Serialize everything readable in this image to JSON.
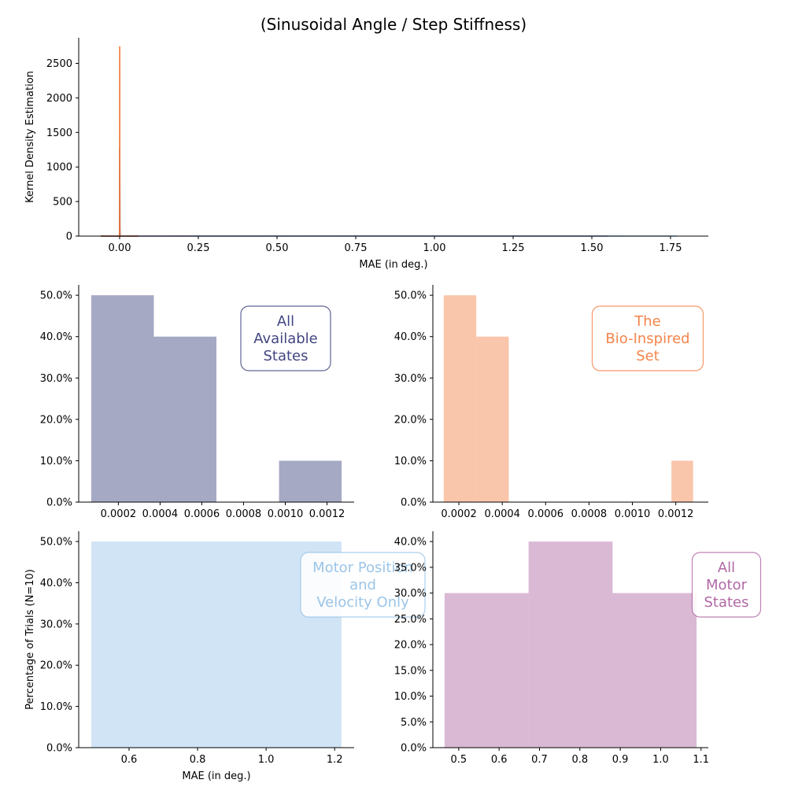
{
  "figure": {
    "title": "(Sinusoidal Angle / Step Stiffness)"
  },
  "colors": {
    "all_available": "#2c3172",
    "bio_inspired": "#f37736",
    "motor_pos_vel": "#90bfe6",
    "all_motor": "#a8589c"
  },
  "chart_data": [
    {
      "type": "line",
      "ylabel": "Kernel Density Estimation",
      "xlabel": "MAE (in deg.)",
      "xlim": [
        -0.13,
        1.87
      ],
      "ylim": [
        0,
        2870
      ],
      "xticks": [
        0.0,
        0.25,
        0.5,
        0.75,
        1.0,
        1.25,
        1.5,
        1.75
      ],
      "xtick_labels": [
        "0.00",
        "0.25",
        "0.50",
        "0.75",
        "1.00",
        "1.25",
        "1.50",
        "1.75"
      ],
      "yticks": [
        0,
        500,
        1000,
        1500,
        2000,
        2500
      ],
      "ytick_labels": [
        "0",
        "500",
        "1000",
        "1500",
        "2000",
        "2500"
      ],
      "grid": false,
      "series": [
        {
          "color": "#2c3172",
          "x": [
            -0.06,
            -0.0005,
            -0.0002,
            0.0001,
            0.0004,
            0.0007,
            0.001,
            0.0013,
            0.0016,
            0.06
          ],
          "y": [
            0,
            0,
            40,
            500,
            1280,
            700,
            120,
            10,
            0,
            0
          ]
        },
        {
          "color": "#f37736",
          "x": [
            -0.06,
            0.0,
            0.0001,
            0.0002,
            0.0003,
            0.0004,
            0.0005,
            0.0006,
            0.0007,
            0.06
          ],
          "y": [
            0,
            0,
            300,
            1600,
            2740,
            2100,
            700,
            80,
            0,
            0
          ]
        },
        {
          "color": "#90bfe6",
          "x": [
            -0.06,
            0.0,
            0.2,
            0.5,
            0.9,
            1.25,
            1.5,
            1.65,
            1.77
          ],
          "y": [
            0,
            0,
            0.1,
            0.6,
            1.2,
            0.6,
            0.2,
            0.05,
            0
          ]
        },
        {
          "color": "#a8589c",
          "x": [
            0.05,
            0.2,
            0.45,
            0.8,
            1.1,
            1.4,
            1.55
          ],
          "y": [
            0,
            0.4,
            1.3,
            2.0,
            1.3,
            0.3,
            0
          ]
        }
      ]
    },
    {
      "type": "bar",
      "histogram": true,
      "label": "All\nAvailable\nStates",
      "color": "#2c3172",
      "bin_edges": [
        7e-05,
        0.00037,
        0.00067,
        0.00097,
        0.00127
      ],
      "values": [
        50,
        40,
        0,
        10
      ],
      "xlim": [
        1e-05,
        0.00133
      ],
      "ylim": [
        0,
        52.5
      ],
      "xticks": [
        0.0002,
        0.0004,
        0.0006,
        0.0008,
        0.001,
        0.0012
      ],
      "xtick_labels": [
        "0.0002",
        "0.0004",
        "0.0006",
        "0.0008",
        "0.0010",
        "0.0012"
      ],
      "yticks": [
        0,
        10,
        20,
        30,
        40,
        50
      ],
      "ytick_labels": [
        "0.0%",
        "10.0%",
        "20.0%",
        "30.0%",
        "40.0%",
        "50.0%"
      ]
    },
    {
      "type": "bar",
      "histogram": true,
      "label": "The\nBio-Inspired\nSet",
      "color": "#f37736",
      "bin_edges": [
        0.00013,
        0.00028,
        0.00043,
        0.00058,
        0.00073,
        0.00088,
        0.00103,
        0.00118,
        0.00128
      ],
      "values": [
        50,
        40,
        0,
        0,
        0,
        0,
        0,
        10
      ],
      "xlim": [
        8e-05,
        0.00135
      ],
      "ylim": [
        0,
        52.5
      ],
      "xticks": [
        0.0002,
        0.0004,
        0.0006,
        0.0008,
        0.001,
        0.0012
      ],
      "xtick_labels": [
        "0.0002",
        "0.0004",
        "0.0006",
        "0.0008",
        "0.0010",
        "0.0012"
      ],
      "yticks": [
        0,
        10,
        20,
        30,
        40,
        50
      ],
      "ytick_labels": [
        "0.0%",
        "10.0%",
        "20.0%",
        "30.0%",
        "40.0%",
        "50.0%"
      ]
    },
    {
      "type": "bar",
      "histogram": true,
      "label": "Motor Position\nand\nVelocity Only",
      "color": "#90bfe6",
      "ylabel": "Percentage of Trials (N=10)",
      "xlabel": "MAE (in deg.)",
      "bin_edges": [
        0.49,
        1.22
      ],
      "values": [
        50
      ],
      "xlim": [
        0.453,
        1.257
      ],
      "ylim": [
        0,
        52.5
      ],
      "xticks": [
        0.6,
        0.8,
        1.0,
        1.2
      ],
      "xtick_labels": [
        "0.6",
        "0.8",
        "1.0",
        "1.2"
      ],
      "yticks": [
        0,
        10,
        20,
        30,
        40,
        50
      ],
      "ytick_labels": [
        "0.0%",
        "10.0%",
        "20.0%",
        "30.0%",
        "40.0%",
        "50.0%"
      ]
    },
    {
      "type": "bar",
      "histogram": true,
      "label": "All\nMotor\nStates",
      "color": "#a8589c",
      "bin_edges": [
        0.465,
        0.673,
        0.881,
        1.089
      ],
      "values": [
        30,
        40,
        30
      ],
      "xlim": [
        0.436,
        1.118
      ],
      "ylim": [
        0,
        42
      ],
      "xticks": [
        0.5,
        0.6,
        0.7,
        0.8,
        0.9,
        1.0,
        1.1
      ],
      "xtick_labels": [
        "0.5",
        "0.6",
        "0.7",
        "0.8",
        "0.9",
        "1.0",
        "1.1"
      ],
      "yticks": [
        0,
        5,
        10,
        15,
        20,
        25,
        30,
        35,
        40
      ],
      "ytick_labels": [
        "0.0%",
        "5.0%",
        "10.0%",
        "15.0%",
        "20.0%",
        "25.0%",
        "30.0%",
        "35.0%",
        "40.0%"
      ]
    }
  ]
}
